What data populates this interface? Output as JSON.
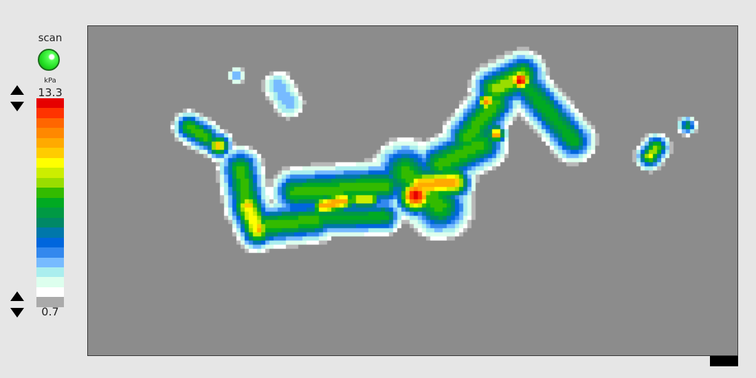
{
  "status": {
    "label": "scan",
    "indicator_color": "#22dd22",
    "state": "on"
  },
  "scale": {
    "unit": "kPa",
    "max": "13.3",
    "min": "0.7",
    "colors": [
      "#e60000",
      "#ff3300",
      "#ff6600",
      "#ff8800",
      "#ffaa00",
      "#ffcc00",
      "#ffff00",
      "#ccee00",
      "#99dd00",
      "#33bb00",
      "#00aa22",
      "#009944",
      "#008866",
      "#0077aa",
      "#0066dd",
      "#3388ee",
      "#77bbff",
      "#aaeeee",
      "#ddffee",
      "#ffffff",
      "#aaaaaa"
    ]
  },
  "pressure_map": {
    "background_color": "#8c8c8c"
  }
}
